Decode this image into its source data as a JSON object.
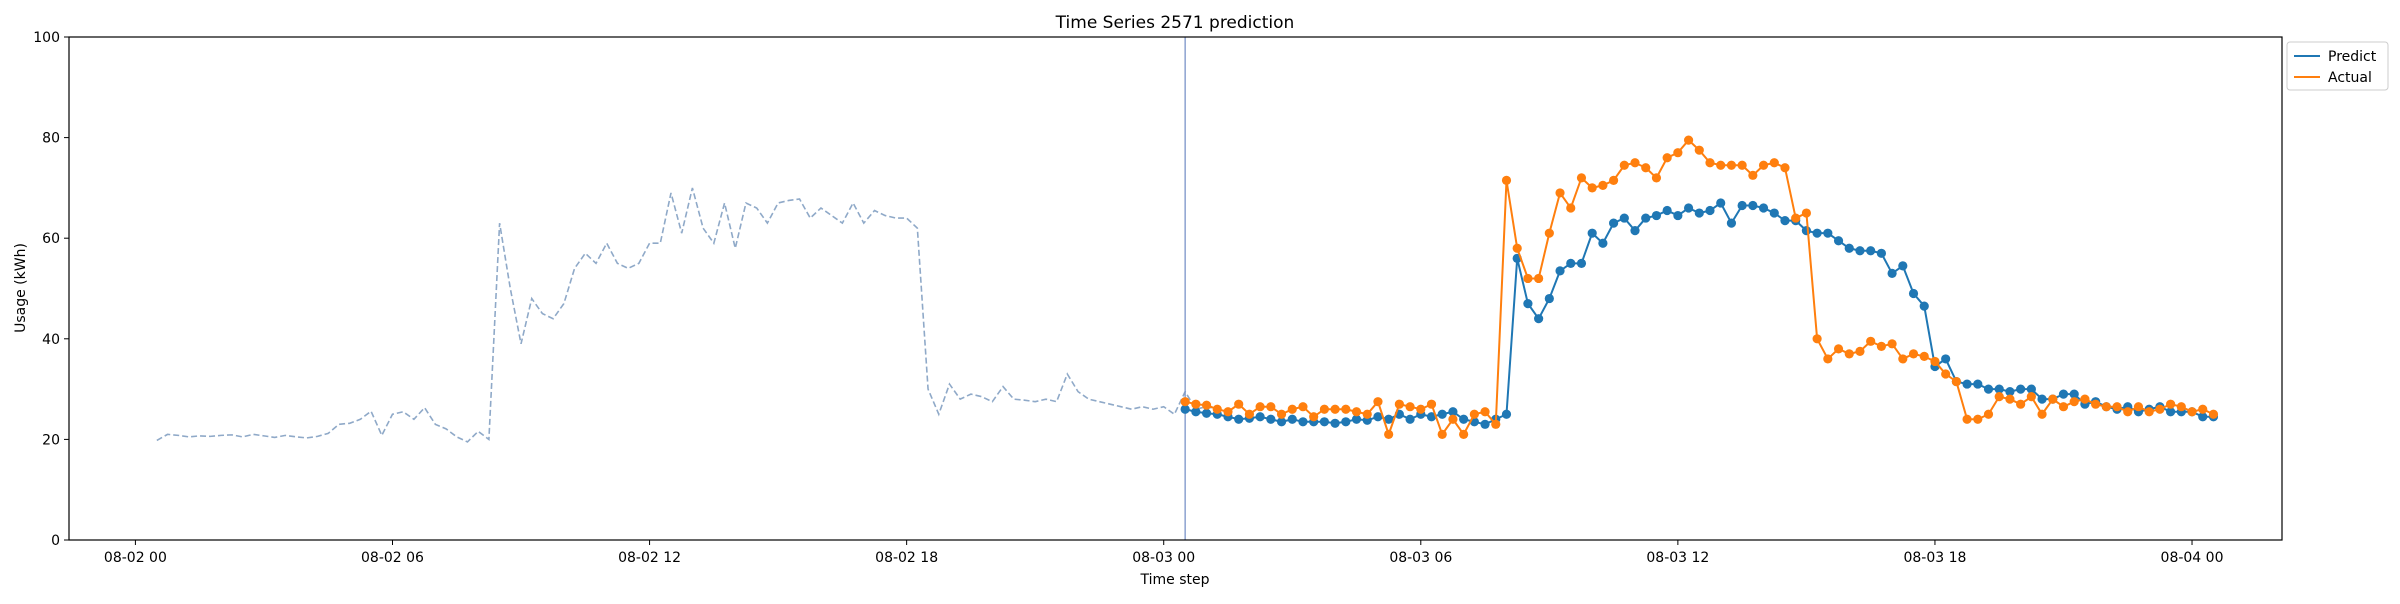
{
  "chart_data": {
    "type": "line",
    "title": "Time Series 2571 prediction",
    "xlabel": "Time step",
    "ylabel": "Usage (kWh)",
    "ylim": [
      0,
      100
    ],
    "yticks": [
      0,
      20,
      40,
      60,
      80,
      100
    ],
    "xlim_hours": [
      -1.55,
      50.1
    ],
    "xticks": [
      {
        "label": "08-02 00",
        "hour": 0
      },
      {
        "label": "08-02 06",
        "hour": 6
      },
      {
        "label": "08-02 12",
        "hour": 12
      },
      {
        "label": "08-02 18",
        "hour": 18
      },
      {
        "label": "08-03 00",
        "hour": 24
      },
      {
        "label": "08-03 06",
        "hour": 30
      },
      {
        "label": "08-03 12",
        "hour": 36
      },
      {
        "label": "08-03 18",
        "hour": 42
      },
      {
        "label": "08-04 00",
        "hour": 48
      }
    ],
    "x_start": "08-02 00:30",
    "x_step_hours": 0.25,
    "vline_hour": 24.5,
    "legend_position": "upper right outside",
    "history": {
      "start_hour": 0.5,
      "step_hours": 0.25,
      "color": "#8FA9C8",
      "values": [
        19.8,
        21.0,
        20.8,
        20.5,
        20.7,
        20.6,
        20.8,
        20.9,
        20.5,
        21.0,
        20.7,
        20.4,
        20.8,
        20.5,
        20.3,
        20.6,
        21.2,
        23.0,
        23.2,
        24.0,
        25.6,
        20.8,
        25.0,
        25.5,
        24.0,
        26.3,
        23.0,
        22.1,
        20.5,
        19.5,
        21.6,
        20.0,
        63.0,
        50.0,
        39.0,
        48.0,
        45.0,
        44.0,
        47.0,
        54.0,
        57.0,
        55.0,
        59.0,
        55.0,
        54.0,
        55.0,
        59.0,
        59.0,
        69.0,
        61.0,
        70.0,
        62.0,
        59.0,
        67.0,
        58.0,
        67.0,
        66.0,
        63.0,
        67.0,
        67.5,
        67.8,
        64.0,
        66.0,
        64.5,
        63.0,
        67.0,
        63.0,
        65.5,
        64.5,
        64.0,
        64.0,
        62.0,
        30.0,
        25.0,
        31.0,
        28.0,
        29.0,
        28.5,
        27.5,
        30.5,
        28.0,
        27.8,
        27.5,
        28.0,
        27.5,
        33.0,
        29.5,
        28.0,
        27.5,
        27.0,
        26.5,
        26.0,
        26.5,
        26.0,
        26.5,
        25.0,
        29.5,
        26.0,
        26.5,
        26.0
      ]
    },
    "series": [
      {
        "name": "Predict",
        "color": "#1f77b4",
        "start_hour": 24.5,
        "step_hours": 0.25,
        "values": [
          26.0,
          25.5,
          25.2,
          25.0,
          24.5,
          24.0,
          24.2,
          24.5,
          24.0,
          23.5,
          24.0,
          23.5,
          23.5,
          23.5,
          23.2,
          23.5,
          24.0,
          23.8,
          24.5,
          24.0,
          25.0,
          24.0,
          25.0,
          24.5,
          25.0,
          25.5,
          24.0,
          23.5,
          23.0,
          24.0,
          25.0,
          56.0,
          47.0,
          44.0,
          48.0,
          53.5,
          55.0,
          55.0,
          61.0,
          59.0,
          63.0,
          64.0,
          61.5,
          64.0,
          64.5,
          65.5,
          64.5,
          66.0,
          65.0,
          65.5,
          67.0,
          63.0,
          66.5,
          66.5,
          66.0,
          65.0,
          63.5,
          63.5,
          61.5,
          61.0,
          61.0,
          59.5,
          58.0,
          57.5,
          57.5,
          57.0,
          53.0,
          54.5,
          49.0,
          46.5,
          34.5,
          36.0,
          31.5,
          31.0,
          31.0,
          30.0,
          30.0,
          29.5,
          30.0,
          30.0,
          28.0,
          28.0,
          29.0,
          29.0,
          27.0,
          27.5,
          26.5,
          26.0,
          26.5,
          25.5,
          26.0,
          26.5,
          25.5,
          25.5,
          25.5,
          24.5,
          24.5
        ]
      },
      {
        "name": "Actual",
        "color": "#ff7f0e",
        "start_hour": 24.5,
        "step_hours": 0.25,
        "values": [
          27.5,
          27.0,
          26.8,
          26.0,
          25.5,
          27.0,
          25.0,
          26.5,
          26.5,
          25.0,
          26.0,
          26.5,
          24.5,
          26.0,
          26.0,
          26.0,
          25.5,
          25.0,
          27.5,
          21.0,
          27.0,
          26.5,
          26.0,
          27.0,
          21.0,
          24.0,
          21.0,
          25.0,
          25.5,
          23.0,
          71.5,
          58.0,
          52.0,
          52.0,
          61.0,
          69.0,
          66.0,
          72.0,
          70.0,
          70.5,
          71.5,
          74.5,
          75.0,
          74.0,
          72.0,
          76.0,
          77.0,
          79.5,
          77.5,
          75.0,
          74.5,
          74.5,
          74.5,
          72.5,
          74.5,
          75.0,
          74.0,
          64.0,
          65.0,
          40.0,
          36.0,
          38.0,
          37.0,
          37.5,
          39.5,
          38.5,
          39.0,
          36.0,
          37.0,
          36.5,
          35.5,
          33.0,
          31.5,
          24.0,
          24.0,
          25.0,
          28.5,
          28.0,
          27.0,
          28.5,
          25.0,
          28.0,
          26.5,
          27.5,
          28.0,
          27.0,
          26.5,
          26.5,
          25.5,
          26.5,
          25.5,
          26.0,
          27.0,
          26.5,
          25.5,
          26.0,
          25.0
        ]
      }
    ]
  }
}
